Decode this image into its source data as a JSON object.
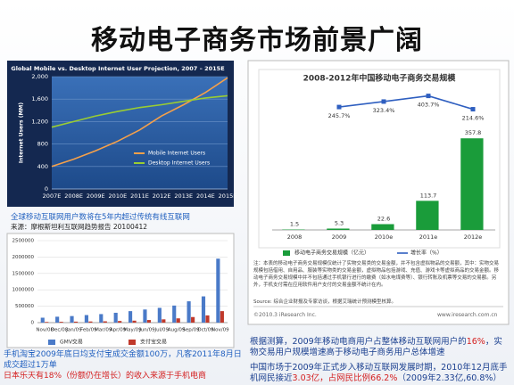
{
  "slide": {
    "title": "移动电子商务市场前景广阔",
    "caption": [
      "全球移动互联网用户数将在5年内超过传统有线互联网",
      "来源：摩根斯坦利互联网趋势报告 20100412"
    ],
    "left_notes": [
      {
        "text": "手机淘宝2009年底日均支付宝成交金额100万，凡客2011年8月日成交超过1万单",
        "color": "#1f5fbf"
      },
      {
        "text": "日本乐天有18%（份额仍在增长）的收入来源于手机电商",
        "color": "#d42020"
      }
    ],
    "right_notes": [
      {
        "segments": [
          {
            "text": "根据测算，2009年移动电商用户占整体移动互联网用户的",
            "color": "#1a3f8f"
          },
          {
            "text": "16%",
            "color": "#d42020"
          },
          {
            "text": "，实物交易用户规模增速高于移动电子商务用户总体增速",
            "color": "#1a3f8f"
          }
        ]
      },
      {
        "segments": [
          {
            "text": "中国市场于2009年正式步入移动互联网发展时期，2010年12月底手机网民接近",
            "color": "#1a3f8f"
          },
          {
            "text": "3.03亿，占网民比例66.2%",
            "color": "#d42020"
          },
          {
            "text": "（2009年2.33亿,60.8%）",
            "color": "#1a3f8f"
          }
        ]
      }
    ],
    "chart_note": "注：本表的移动电子商务交易规模仅统计了实物交易类的交易金额，并不包含虚拟物品的交易额，其中：实物交易规模包括借用、自用品、服装等实物类的交易金额，虚拟物品包括游戏、充值、游戏卡等虚拟商品的交易金额。移动电子商务交易规模中并不包括通过手机银行进行的缴费（如水电煤费等）、银行转账及机票等交易的交易额。另外，手机支付需在应用软件用户支付的交易金额不统计在内。",
    "chart_source": "Source: 综合企业财报及专家访谈，根据艾瑞统计预测模型核算。",
    "copyright": "©2010.3 iResearch Inc.",
    "url": "www.iresearch.com.cn"
  },
  "chart_data": [
    {
      "type": "line",
      "title": "Global Mobile vs. Desktop Internet User Projection, 2007 – 2015E",
      "ylabel": "Internet Users (MM)",
      "categories": [
        "2007E",
        "2008E",
        "2009E",
        "2010E",
        "2011E",
        "2012E",
        "2013E",
        "2014E",
        "2015E"
      ],
      "series": [
        {
          "name": "Mobile Internet Users",
          "color": "#f5a04a",
          "values": [
            400,
            530,
            680,
            850,
            1050,
            1300,
            1500,
            1720,
            1980
          ]
        },
        {
          "name": "Desktop Internet Users",
          "color": "#9acd32",
          "values": [
            1100,
            1200,
            1300,
            1380,
            1450,
            1500,
            1560,
            1620,
            1660
          ]
        }
      ],
      "ylim": [
        0,
        2000
      ],
      "yticks": [
        0,
        400,
        800,
        {
          "value": 1200,
          "label": "1,200"
        },
        {
          "value": 1600,
          "label": "1,600"
        },
        {
          "value": 2000,
          "label": "2,000"
        }
      ],
      "grid": true
    },
    {
      "type": "bar",
      "categories": [
        "Nov/08",
        "Dec/08",
        "Jan/09",
        "Feb/09",
        "Mar/09",
        "Apr/09",
        "May/09",
        "Jun/09",
        "Jul/09",
        "Aug/09",
        "Sep/09",
        "Oct/09",
        "Nov/09"
      ],
      "series": [
        {
          "name": "GMV交易",
          "color": "#4a7ac8",
          "values": [
            150000,
            180000,
            200000,
            230000,
            260000,
            300000,
            350000,
            400000,
            450000,
            520000,
            650000,
            800000,
            1950000
          ]
        },
        {
          "name": "支付宝交易",
          "color": "#c0392b",
          "values": [
            20000,
            25000,
            30000,
            35000,
            40000,
            50000,
            60000,
            80000,
            100000,
            130000,
            170000,
            220000,
            350000
          ]
        }
      ],
      "ylim": [
        0,
        2500000
      ],
      "yticks": [
        0,
        500000,
        1000000,
        1500000,
        2000000,
        2500000
      ],
      "grid": true
    },
    {
      "type": "bar",
      "title": "2008-2012年中国移动电子商务交易规模",
      "categories": [
        "2008",
        "2009",
        "2010e",
        "2011e",
        "2012e"
      ],
      "series": [
        {
          "name": "移动电子商务交易规模（亿元）",
          "color": "#1a9c3a",
          "values": [
            1.5,
            5.3,
            22.6,
            113.7,
            357.8
          ]
        },
        {
          "name": "增长率（%）",
          "color": "#2f5fc0",
          "axis": "y2",
          "values": [
            null,
            245.7,
            323.4,
            403.7,
            214.6
          ],
          "value_labels": [
            null,
            "245.7%",
            "323.4%",
            "403.7%",
            "214.6%"
          ]
        }
      ],
      "ylim": [
        0,
        550
      ],
      "y2lim": [
        -1500,
        500
      ],
      "grid": false
    }
  ]
}
